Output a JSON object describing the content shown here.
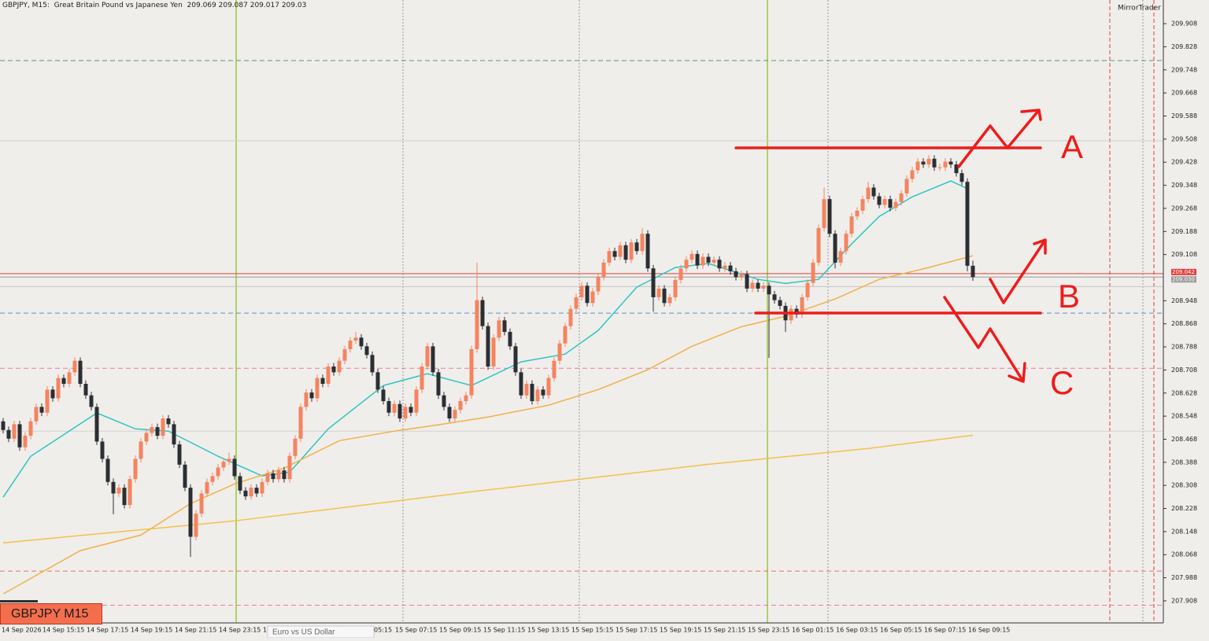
{
  "chart_data": {
    "type": "candlestick",
    "title": "GBPJPY, M15:  Great Britain Pound vs Japanese Yen",
    "broker": "MirrorTrader",
    "symbol_box": "GBPJPY M15",
    "tab": "Euro vs US Dollar",
    "ylim": [
      207.837,
      209.99
    ],
    "yticks": [
      209.908,
      209.828,
      209.748,
      209.668,
      209.588,
      209.508,
      209.428,
      209.348,
      209.268,
      209.188,
      209.108,
      208.948,
      208.868,
      208.788,
      208.708,
      208.628,
      208.548,
      208.468,
      208.388,
      208.308,
      208.228,
      208.148,
      208.068,
      207.988,
      207.908
    ],
    "xtick_labels": [
      "14 Sep 2026",
      "14 Sep 15:15",
      "14 Sep 17:15",
      "14 Sep 19:15",
      "14 Sep 21:15",
      "14 Sep 23:15",
      "1",
      "05:15",
      "15 Sep 07:15",
      "15 Sep 09:15",
      "15 Sep 11:15",
      "15 Sep 13:15",
      "15 Sep 15:15",
      "15 Sep 17:15",
      "15 Sep 19:15",
      "15 Sep 21:15",
      "15 Sep 23:15",
      "16 Sep 01:15",
      "16 Sep 03:15",
      "16 Sep 05:15",
      "16 Sep 07:15",
      "16 Sep 09:15"
    ],
    "bull_color": "#f4845f",
    "bear_color": "#2b2e33",
    "ohlc": [
      [
        208.53,
        208.542,
        208.488,
        208.5
      ],
      [
        208.5,
        208.512,
        208.458,
        208.47
      ],
      [
        208.47,
        208.532,
        208.458,
        208.52
      ],
      [
        208.52,
        208.532,
        208.428,
        208.44
      ],
      [
        208.44,
        208.492,
        208.428,
        208.48
      ],
      [
        208.48,
        208.542,
        208.468,
        208.53
      ],
      [
        208.53,
        208.592,
        208.518,
        208.58
      ],
      [
        208.58,
        208.592,
        208.548,
        208.56
      ],
      [
        208.56,
        208.652,
        208.548,
        208.64
      ],
      [
        208.64,
        208.652,
        208.598,
        208.61
      ],
      [
        208.61,
        208.692,
        208.598,
        208.68
      ],
      [
        208.68,
        208.692,
        208.648,
        208.66
      ],
      [
        208.66,
        208.712,
        208.648,
        208.7
      ],
      [
        208.7,
        208.752,
        208.688,
        208.74
      ],
      [
        208.74,
        208.752,
        208.648,
        208.66
      ],
      [
        208.66,
        208.672,
        208.608,
        208.62
      ],
      [
        208.62,
        208.632,
        208.568,
        208.58
      ],
      [
        208.58,
        208.592,
        208.448,
        208.46
      ],
      [
        208.46,
        208.472,
        208.388,
        208.4
      ],
      [
        208.4,
        208.412,
        208.308,
        208.32
      ],
      [
        208.32,
        208.332,
        208.208,
        208.28
      ],
      [
        208.28,
        208.312,
        208.268,
        208.3
      ],
      [
        208.3,
        208.312,
        208.228,
        208.24
      ],
      [
        208.24,
        208.342,
        208.228,
        208.33
      ],
      [
        208.33,
        208.412,
        208.318,
        208.4
      ],
      [
        208.4,
        208.472,
        208.388,
        208.46
      ],
      [
        208.46,
        208.502,
        208.448,
        208.49
      ],
      [
        208.49,
        208.522,
        208.478,
        208.51
      ],
      [
        208.51,
        208.522,
        208.468,
        208.48
      ],
      [
        208.48,
        208.552,
        208.468,
        208.54
      ],
      [
        208.54,
        208.552,
        208.508,
        208.52
      ],
      [
        208.52,
        208.532,
        208.438,
        208.45
      ],
      [
        208.45,
        208.462,
        208.368,
        208.38
      ],
      [
        208.38,
        208.392,
        208.288,
        208.3
      ],
      [
        208.3,
        208.312,
        208.06,
        208.13
      ],
      [
        208.13,
        208.222,
        208.118,
        208.21
      ],
      [
        208.21,
        208.292,
        208.198,
        208.28
      ],
      [
        208.28,
        208.332,
        208.268,
        208.32
      ],
      [
        208.32,
        208.352,
        208.308,
        208.34
      ],
      [
        208.34,
        208.382,
        208.328,
        208.37
      ],
      [
        208.37,
        208.402,
        208.358,
        208.39
      ],
      [
        208.39,
        208.422,
        208.378,
        208.4
      ],
      [
        208.4,
        208.412,
        208.328,
        208.34
      ],
      [
        208.34,
        208.352,
        208.278,
        208.29
      ],
      [
        208.29,
        208.302,
        208.258,
        208.27
      ],
      [
        208.27,
        208.312,
        208.258,
        208.3
      ],
      [
        208.3,
        208.312,
        208.268,
        208.28
      ],
      [
        208.28,
        208.332,
        208.268,
        208.32
      ],
      [
        208.32,
        208.362,
        208.308,
        208.35
      ],
      [
        208.35,
        208.362,
        208.318,
        208.33
      ],
      [
        208.33,
        208.372,
        208.318,
        208.36
      ],
      [
        208.36,
        208.372,
        208.318,
        208.33
      ],
      [
        208.33,
        208.422,
        208.318,
        208.41
      ],
      [
        208.41,
        208.482,
        208.398,
        208.47
      ],
      [
        208.47,
        208.592,
        208.458,
        208.58
      ],
      [
        208.58,
        208.642,
        208.568,
        208.63
      ],
      [
        208.63,
        208.642,
        208.598,
        208.61
      ],
      [
        208.61,
        208.692,
        208.598,
        208.68
      ],
      [
        208.68,
        208.692,
        208.648,
        208.66
      ],
      [
        208.66,
        208.732,
        208.648,
        208.72
      ],
      [
        208.72,
        208.732,
        208.688,
        208.7
      ],
      [
        208.7,
        208.752,
        208.688,
        208.74
      ],
      [
        208.74,
        208.792,
        208.728,
        208.78
      ],
      [
        208.78,
        208.822,
        208.768,
        208.81
      ],
      [
        208.81,
        208.84,
        208.798,
        208.82
      ],
      [
        208.82,
        208.832,
        208.778,
        208.79
      ],
      [
        208.79,
        208.802,
        208.748,
        208.76
      ],
      [
        208.76,
        208.772,
        208.688,
        208.7
      ],
      [
        208.7,
        208.712,
        208.628,
        208.64
      ],
      [
        208.64,
        208.652,
        208.588,
        208.6
      ],
      [
        208.6,
        208.612,
        208.548,
        208.56
      ],
      [
        208.56,
        208.602,
        208.548,
        208.59
      ],
      [
        208.59,
        208.602,
        208.528,
        208.54
      ],
      [
        208.54,
        208.592,
        208.528,
        208.58
      ],
      [
        208.58,
        208.592,
        208.548,
        208.56
      ],
      [
        208.56,
        208.652,
        208.548,
        208.64
      ],
      [
        208.64,
        208.732,
        208.628,
        208.72
      ],
      [
        208.72,
        208.802,
        208.708,
        208.79
      ],
      [
        208.79,
        208.802,
        208.688,
        208.7
      ],
      [
        208.7,
        208.712,
        208.608,
        208.62
      ],
      [
        208.62,
        208.632,
        208.568,
        208.58
      ],
      [
        208.58,
        208.592,
        208.528,
        208.54
      ],
      [
        208.54,
        208.582,
        208.528,
        208.57
      ],
      [
        208.57,
        208.612,
        208.558,
        208.6
      ],
      [
        208.6,
        208.632,
        208.588,
        208.62
      ],
      [
        208.62,
        208.792,
        208.608,
        208.78
      ],
      [
        208.78,
        209.08,
        208.768,
        208.95
      ],
      [
        208.95,
        208.962,
        208.848,
        208.86
      ],
      [
        208.86,
        208.872,
        208.708,
        208.72
      ],
      [
        208.72,
        208.832,
        208.708,
        208.82
      ],
      [
        208.82,
        208.892,
        208.808,
        208.88
      ],
      [
        208.88,
        208.892,
        208.828,
        208.84
      ],
      [
        208.84,
        208.852,
        208.778,
        208.79
      ],
      [
        208.79,
        208.802,
        208.688,
        208.7
      ],
      [
        208.7,
        208.712,
        208.608,
        208.62
      ],
      [
        208.62,
        208.672,
        208.608,
        208.66
      ],
      [
        208.66,
        208.672,
        208.588,
        208.6
      ],
      [
        208.6,
        208.652,
        208.588,
        208.64
      ],
      [
        208.64,
        208.652,
        208.608,
        208.62
      ],
      [
        208.62,
        208.692,
        208.608,
        208.68
      ],
      [
        208.68,
        208.752,
        208.668,
        208.74
      ],
      [
        208.74,
        208.812,
        208.728,
        208.8
      ],
      [
        208.8,
        208.872,
        208.788,
        208.86
      ],
      [
        208.86,
        208.932,
        208.848,
        208.92
      ],
      [
        208.92,
        208.972,
        208.908,
        208.96
      ],
      [
        208.96,
        209.012,
        208.948,
        209.0
      ],
      [
        209.0,
        209.012,
        208.928,
        208.94
      ],
      [
        208.94,
        208.992,
        208.928,
        208.98
      ],
      [
        208.98,
        209.042,
        208.968,
        209.03
      ],
      [
        209.03,
        209.092,
        209.018,
        209.08
      ],
      [
        209.08,
        209.132,
        209.068,
        209.12
      ],
      [
        209.12,
        209.132,
        209.088,
        209.1
      ],
      [
        209.1,
        209.152,
        209.088,
        209.14
      ],
      [
        209.14,
        209.152,
        209.078,
        209.09
      ],
      [
        209.09,
        209.162,
        209.078,
        209.15
      ],
      [
        209.15,
        209.162,
        209.108,
        209.12
      ],
      [
        209.12,
        209.2,
        209.108,
        209.18
      ],
      [
        209.18,
        209.192,
        209.048,
        209.06
      ],
      [
        209.06,
        209.072,
        208.91,
        208.96
      ],
      [
        208.96,
        209.002,
        208.948,
        208.99
      ],
      [
        208.99,
        209.002,
        208.928,
        208.94
      ],
      [
        208.94,
        208.972,
        208.928,
        208.96
      ],
      [
        208.96,
        209.032,
        208.948,
        209.02
      ],
      [
        209.02,
        209.072,
        209.008,
        209.06
      ],
      [
        209.06,
        209.102,
        209.048,
        209.09
      ],
      [
        209.09,
        209.122,
        209.078,
        209.11
      ],
      [
        209.11,
        209.122,
        209.058,
        209.07
      ],
      [
        209.07,
        209.112,
        209.058,
        209.1
      ],
      [
        209.1,
        209.112,
        209.068,
        209.08
      ],
      [
        209.08,
        209.102,
        209.068,
        209.09
      ],
      [
        209.09,
        209.102,
        209.048,
        209.06
      ],
      [
        209.06,
        209.082,
        209.048,
        209.07
      ],
      [
        209.07,
        209.082,
        209.038,
        209.05
      ],
      [
        209.05,
        209.062,
        209.018,
        209.03
      ],
      [
        209.03,
        209.052,
        209.018,
        209.04
      ],
      [
        209.04,
        209.052,
        208.978,
        208.99
      ],
      [
        208.99,
        209.022,
        208.978,
        209.01
      ],
      [
        209.01,
        209.022,
        208.978,
        208.99
      ],
      [
        208.99,
        209.012,
        208.978,
        209.0
      ],
      [
        209.0,
        209.012,
        208.75,
        208.97
      ],
      [
        208.97,
        208.982,
        208.938,
        208.95
      ],
      [
        208.95,
        208.962,
        208.918,
        208.93
      ],
      [
        208.93,
        208.942,
        208.84,
        208.88
      ],
      [
        208.88,
        208.932,
        208.868,
        208.92
      ],
      [
        208.92,
        208.932,
        208.888,
        208.9
      ],
      [
        208.9,
        208.972,
        208.888,
        208.96
      ],
      [
        208.96,
        209.022,
        208.948,
        209.01
      ],
      [
        209.01,
        209.092,
        208.998,
        209.08
      ],
      [
        209.08,
        209.212,
        209.068,
        209.2
      ],
      [
        209.2,
        209.34,
        209.188,
        209.3
      ],
      [
        209.3,
        209.312,
        209.168,
        209.18
      ],
      [
        209.18,
        209.192,
        209.06,
        209.08
      ],
      [
        209.08,
        209.132,
        209.068,
        209.12
      ],
      [
        209.12,
        209.192,
        209.108,
        209.18
      ],
      [
        209.18,
        209.252,
        209.168,
        209.24
      ],
      [
        209.24,
        209.272,
        209.228,
        209.26
      ],
      [
        209.26,
        209.312,
        209.248,
        209.3
      ],
      [
        209.3,
        209.36,
        209.288,
        209.34
      ],
      [
        209.34,
        209.352,
        209.298,
        209.31
      ],
      [
        209.31,
        209.322,
        209.268,
        209.28
      ],
      [
        209.28,
        209.312,
        209.268,
        209.3
      ],
      [
        209.3,
        209.312,
        209.258,
        209.27
      ],
      [
        209.27,
        209.302,
        209.258,
        209.29
      ],
      [
        209.29,
        209.332,
        209.278,
        209.32
      ],
      [
        209.32,
        209.382,
        209.308,
        209.37
      ],
      [
        209.37,
        209.412,
        209.358,
        209.4
      ],
      [
        209.4,
        209.442,
        209.388,
        209.43
      ],
      [
        209.43,
        209.442,
        209.408,
        209.42
      ],
      [
        209.42,
        209.452,
        209.408,
        209.44
      ],
      [
        209.44,
        209.452,
        209.398,
        209.41
      ],
      [
        209.41,
        209.422,
        209.398,
        209.41
      ],
      [
        209.41,
        209.442,
        209.398,
        209.43
      ],
      [
        209.43,
        209.442,
        209.408,
        209.42
      ],
      [
        209.42,
        209.432,
        209.378,
        209.39
      ],
      [
        209.39,
        209.402,
        209.348,
        209.36
      ],
      [
        209.36,
        209.372,
        209.05,
        209.069
      ],
      [
        209.069,
        209.087,
        209.017,
        209.03
      ]
    ],
    "indicators": [
      {
        "color": "#2ec4c4",
        "x": [
          0,
          5,
          17,
          24,
          30,
          39,
          47,
          52,
          59,
          69,
          77,
          85,
          94,
          102,
          108,
          115,
          122,
          128,
          137,
          142,
          148,
          154,
          159,
          165,
          172,
          175
        ],
        "values": [
          208.267,
          208.409,
          208.559,
          208.504,
          208.496,
          208.409,
          208.341,
          208.354,
          208.504,
          208.654,
          208.695,
          208.654,
          208.736,
          208.763,
          208.845,
          208.995,
          209.063,
          209.077,
          209.022,
          209.008,
          209.022,
          209.145,
          209.24,
          209.308,
          209.363,
          209.336
        ]
      },
      {
        "color": "#f2b04a",
        "x": [
          0,
          14,
          25,
          34,
          42,
          51,
          61,
          71,
          79,
          88,
          99,
          108,
          117,
          125,
          134,
          142,
          151,
          159,
          168,
          176
        ],
        "values": [
          207.932,
          208.082,
          208.136,
          208.245,
          208.313,
          208.368,
          208.463,
          208.496,
          208.518,
          208.545,
          208.586,
          208.64,
          208.709,
          208.79,
          208.858,
          208.894,
          208.954,
          209.022,
          209.063,
          209.104
        ]
      },
      {
        "color": "#f2c14a",
        "x": [
          0,
          42,
          85,
          128,
          157,
          176
        ],
        "values": [
          208.109,
          208.185,
          208.286,
          208.381,
          208.436,
          208.482
        ]
      }
    ],
    "levels": [
      {
        "value": 209.78,
        "color": "#4f9a72",
        "dash": true
      },
      {
        "value": 209.502,
        "color": "#cfcfcf",
        "dash": false
      },
      {
        "value": 209.042,
        "color": "#e0403a",
        "dash": false
      },
      {
        "value": 209.03,
        "color": "#9a9a9a",
        "dash": false
      },
      {
        "value": 208.997,
        "color": "#c4c4c4",
        "dash": false
      },
      {
        "value": 208.905,
        "color": "#5a8fd0",
        "dash": true
      },
      {
        "value": 208.714,
        "color": "#e87aa8",
        "dash": true
      },
      {
        "value": 208.496,
        "color": "#d4d4d4",
        "dash": false
      },
      {
        "value": 208.011,
        "color": "#e8735a",
        "dash": true
      },
      {
        "value": 207.893,
        "color": "#e87aa8",
        "dash": true
      }
    ],
    "price_tags": [
      {
        "value": 209.042,
        "label": "209.042",
        "color": "#e0403a"
      },
      {
        "value": 209.03,
        "label": "209.030",
        "color": "#9a9a9a"
      }
    ],
    "annotations": [
      "A",
      "B",
      "C"
    ]
  }
}
